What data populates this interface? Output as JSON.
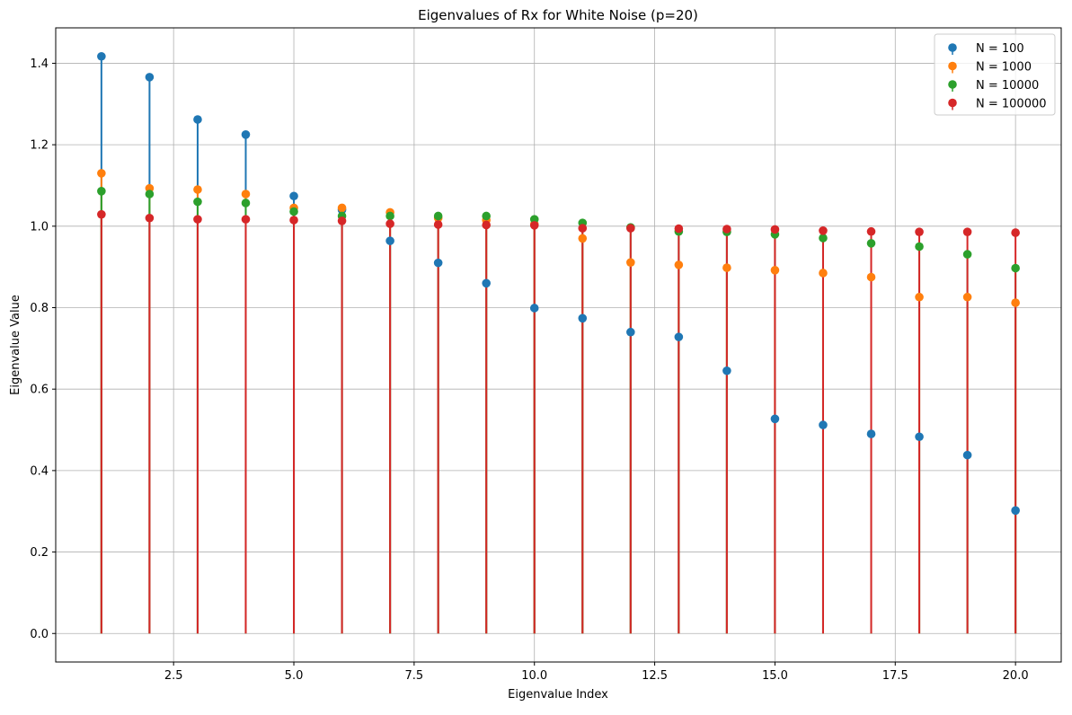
{
  "chart_data": {
    "type": "scatter",
    "subtype": "stem",
    "title": "Eigenvalues of Rx for White Noise (p=20)",
    "xlabel": "Eigenvalue Index",
    "ylabel": "Eigenvalue Value",
    "xlim": [
      0.05,
      20.95
    ],
    "ylim": [
      -0.07,
      1.487
    ],
    "xticks": [
      2.5,
      5.0,
      7.5,
      10.0,
      12.5,
      15.0,
      17.5,
      20.0
    ],
    "xtick_labels": [
      "2.5",
      "5.0",
      "7.5",
      "10.0",
      "12.5",
      "15.0",
      "17.5",
      "20.0"
    ],
    "yticks": [
      0.0,
      0.2,
      0.4,
      0.6,
      0.8,
      1.0,
      1.2,
      1.4
    ],
    "ytick_labels": [
      "0.0",
      "0.2",
      "0.4",
      "0.6",
      "0.8",
      "1.0",
      "1.2",
      "1.4"
    ],
    "grid": true,
    "legend_position": "top-right",
    "x": [
      1,
      2,
      3,
      4,
      5,
      6,
      7,
      8,
      9,
      10,
      11,
      12,
      13,
      14,
      15,
      16,
      17,
      18,
      19,
      20
    ],
    "series": [
      {
        "name": "N = 100",
        "color": "#1f77b4",
        "values": [
          1.417,
          1.366,
          1.262,
          1.225,
          1.074,
          1.04,
          0.964,
          0.91,
          0.86,
          0.799,
          0.774,
          0.74,
          0.728,
          0.645,
          0.527,
          0.512,
          0.49,
          0.483,
          0.438,
          0.302
        ]
      },
      {
        "name": "N = 1000",
        "color": "#ff7f0e",
        "values": [
          1.13,
          1.093,
          1.09,
          1.079,
          1.045,
          1.045,
          1.034,
          1.02,
          1.015,
          1.005,
          0.97,
          0.911,
          0.905,
          0.898,
          0.892,
          0.885,
          0.875,
          0.826,
          0.826,
          0.812
        ]
      },
      {
        "name": "N = 10000",
        "color": "#2ca02c",
        "values": [
          1.086,
          1.079,
          1.06,
          1.057,
          1.036,
          1.025,
          1.025,
          1.025,
          1.025,
          1.017,
          1.008,
          0.997,
          0.987,
          0.986,
          0.98,
          0.971,
          0.958,
          0.95,
          0.931,
          0.897
        ]
      },
      {
        "name": "N = 100000",
        "color": "#d62728",
        "values": [
          1.029,
          1.02,
          1.017,
          1.017,
          1.015,
          1.013,
          1.006,
          1.004,
          1.003,
          1.002,
          0.995,
          0.995,
          0.994,
          0.993,
          0.992,
          0.989,
          0.987,
          0.986,
          0.986,
          0.984
        ]
      }
    ]
  }
}
